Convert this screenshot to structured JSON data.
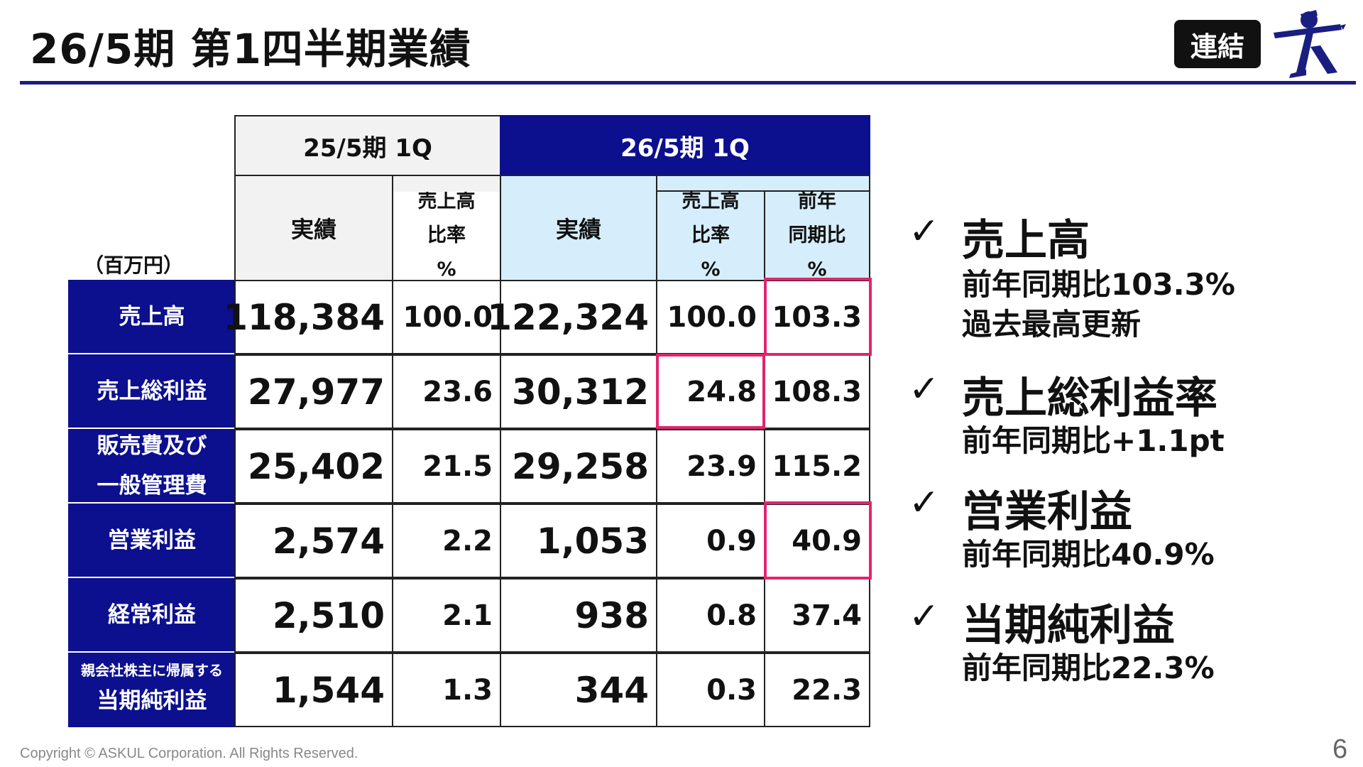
{
  "title": "26/5期 第1四半期業績",
  "badge": "連結",
  "table": {
    "unit": "（百万円）",
    "period_prev": "25/5期 1Q",
    "period_curr": "26/5期 1Q",
    "col_actual": "実績",
    "col_ratio": [
      "売上高",
      "比率",
      "%"
    ],
    "col_yoy": [
      "前年",
      "同期比",
      "%"
    ],
    "rows": [
      {
        "label": [
          "売上高"
        ],
        "prev": "118,384",
        "prev_ratio": "100.0",
        "curr": "122,324",
        "curr_ratio": "100.0",
        "yoy": "103.3"
      },
      {
        "label": [
          "売上総利益"
        ],
        "prev": "27,977",
        "prev_ratio": "23.6",
        "curr": "30,312",
        "curr_ratio": "24.8",
        "yoy": "108.3"
      },
      {
        "label": [
          "販売費及び",
          "一般管理費"
        ],
        "prev": "25,402",
        "prev_ratio": "21.5",
        "curr": "29,258",
        "curr_ratio": "23.9",
        "yoy": "115.2"
      },
      {
        "label": [
          "営業利益"
        ],
        "prev": "2,574",
        "prev_ratio": "2.2",
        "curr": "1,053",
        "curr_ratio": "0.9",
        "yoy": "40.9"
      },
      {
        "label": [
          "経常利益"
        ],
        "prev": "2,510",
        "prev_ratio": "2.1",
        "curr": "938",
        "curr_ratio": "0.8",
        "yoy": "37.4"
      },
      {
        "label": [
          "親会社株主に帰属する",
          "当期純利益"
        ],
        "prev": "1,544",
        "prev_ratio": "1.3",
        "curr": "344",
        "curr_ratio": "0.3",
        "yoy": "22.3"
      }
    ]
  },
  "highlights": [
    {
      "check": "✓",
      "title": "売上高",
      "lines": [
        "前年同期比103.3%",
        "過去最高更新"
      ]
    },
    {
      "check": "✓",
      "title": "売上総利益率",
      "lines": [
        "前年同期比+1.1pt"
      ]
    },
    {
      "check": "✓",
      "title": "営業利益",
      "lines": [
        "前年同期比40.9%"
      ]
    },
    {
      "check": "✓",
      "title": "当期純利益",
      "lines": [
        "前年同期比22.3%"
      ]
    }
  ],
  "footer": {
    "copyright": "Copyright © ASKUL Corporation. All Rights Reserved.",
    "page": "6"
  },
  "colors": {
    "navy": "#0c108e",
    "highlight": "#e0256e",
    "light_blue": "#d6eefb",
    "grey": "#f2f2f2"
  }
}
